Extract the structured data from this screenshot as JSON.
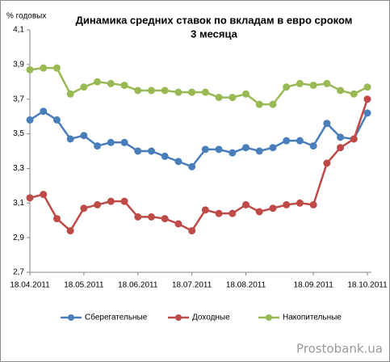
{
  "chart_data": {
    "type": "line",
    "title": [
      "Динамика средних ставок по вкладам в евро сроком",
      "3 месяца"
    ],
    "y_label": "% годовых",
    "watermark": "Prostobank.ua",
    "categories": [
      "18.04.2011",
      null,
      null,
      null,
      "18.05.2011",
      null,
      null,
      null,
      "18.06.2011",
      null,
      null,
      null,
      "18.07.2011",
      null,
      null,
      null,
      "18.08.2011",
      null,
      null,
      null,
      null,
      "18.09.2011",
      null,
      null,
      null,
      "18.10.2011"
    ],
    "ylim": [
      2.7,
      4.1
    ],
    "yticks": [
      {
        "value": 2.7,
        "label": "2,7"
      },
      {
        "value": 2.9,
        "label": "2,9"
      },
      {
        "value": 3.1,
        "label": "3,1"
      },
      {
        "value": 3.3,
        "label": "3,3"
      },
      {
        "value": 3.5,
        "label": "3,5"
      },
      {
        "value": 3.7,
        "label": "3,7"
      },
      {
        "value": 3.9,
        "label": "3,9"
      },
      {
        "value": 4.1,
        "label": "4,1"
      }
    ],
    "grid": false,
    "legend": "bottom",
    "series": [
      {
        "name": "Сберегательные",
        "color": "#4a7ebb",
        "values": [
          3.58,
          3.63,
          3.58,
          3.47,
          3.49,
          3.43,
          3.45,
          3.45,
          3.4,
          3.4,
          3.37,
          3.34,
          3.31,
          3.41,
          3.41,
          3.39,
          3.42,
          3.4,
          3.42,
          3.46,
          3.46,
          3.43,
          3.56,
          3.48,
          3.47,
          3.62
        ]
      },
      {
        "name": "Доходные",
        "color": "#be4b48",
        "values": [
          3.13,
          3.15,
          3.01,
          2.94,
          3.07,
          3.09,
          3.11,
          3.11,
          3.02,
          3.02,
          3.01,
          2.98,
          2.94,
          3.06,
          3.04,
          3.04,
          3.09,
          3.05,
          3.07,
          3.09,
          3.1,
          3.09,
          3.33,
          3.42,
          3.47,
          3.7
        ]
      },
      {
        "name": "Накопительные",
        "color": "#98b954",
        "values": [
          3.87,
          3.88,
          3.88,
          3.73,
          3.77,
          3.8,
          3.79,
          3.78,
          3.75,
          3.75,
          3.75,
          3.74,
          3.74,
          3.74,
          3.71,
          3.71,
          3.73,
          3.67,
          3.67,
          3.77,
          3.79,
          3.78,
          3.79,
          3.75,
          3.73,
          3.77
        ]
      }
    ]
  }
}
